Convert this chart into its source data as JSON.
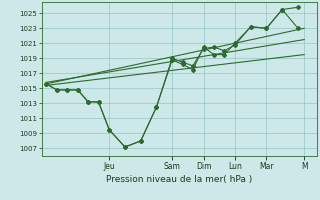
{
  "xlabel": "Pression niveau de la mer( hPa )",
  "bg_color": "#cce8e8",
  "line_color": "#2d6a2d",
  "ylim": [
    1006.0,
    1026.5
  ],
  "yticks": [
    1007,
    1009,
    1011,
    1013,
    1015,
    1017,
    1019,
    1021,
    1023,
    1025
  ],
  "xlim": [
    -0.15,
    8.6
  ],
  "x_day_labels": [
    "Jeu",
    "Sam",
    "Dim",
    "Lun",
    "Mar",
    "M"
  ],
  "x_day_positions": [
    2.0,
    4.0,
    5.0,
    6.0,
    7.0,
    8.2
  ],
  "series1_x": [
    0,
    0.33,
    0.66,
    1.0,
    1.33,
    1.66,
    2.0,
    2.5,
    3.0,
    3.5,
    4.0,
    4.33,
    4.66,
    5.0,
    5.33,
    5.66,
    6.0,
    6.5,
    7.0,
    7.5,
    8.0
  ],
  "series1_y": [
    1015.6,
    1014.8,
    1014.8,
    1014.8,
    1013.2,
    1013.2,
    1009.5,
    1007.2,
    1008.0,
    1012.5,
    1019.0,
    1018.5,
    1018.0,
    1020.3,
    1020.5,
    1020.0,
    1020.8,
    1023.2,
    1023.0,
    1025.5,
    1025.8
  ],
  "series2_x": [
    0,
    0.33,
    0.66,
    1.0,
    1.33,
    1.66,
    2.0,
    2.5,
    3.0,
    3.5,
    4.0,
    4.33,
    4.66,
    5.0,
    5.33,
    5.66,
    6.0,
    6.5,
    7.0,
    7.5,
    8.0
  ],
  "series2_y": [
    1015.6,
    1014.8,
    1014.8,
    1014.8,
    1013.2,
    1013.2,
    1009.5,
    1007.2,
    1008.0,
    1012.5,
    1018.8,
    1018.2,
    1017.5,
    1020.5,
    1019.5,
    1019.5,
    1021.0,
    1023.2,
    1023.0,
    1025.5,
    1023.0
  ],
  "trend1_x": [
    0,
    8.2
  ],
  "trend1_y": [
    1015.6,
    1023.0
  ],
  "trend2_x": [
    0,
    8.2
  ],
  "trend2_y": [
    1015.8,
    1021.5
  ],
  "trend3_x": [
    0,
    8.2
  ],
  "trend3_y": [
    1015.4,
    1019.5
  ]
}
